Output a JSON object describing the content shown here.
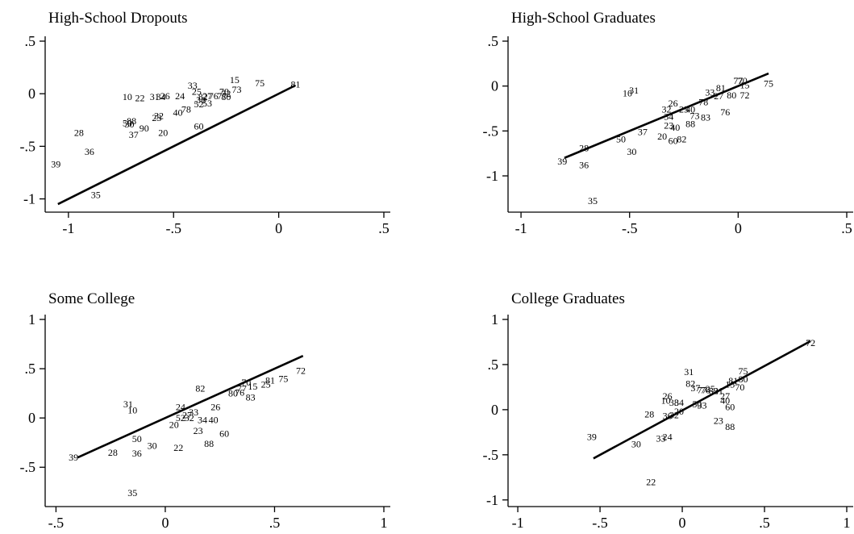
{
  "chart_data": [
    {
      "type": "scatter",
      "title": "High-School Dropouts",
      "xticks": [
        {
          "v": -1,
          "label": "-1"
        },
        {
          "v": -0.5,
          "label": "-.5"
        },
        {
          "v": 0,
          "label": "0"
        },
        {
          "v": 0.5,
          "label": ".5"
        }
      ],
      "yticks": [
        {
          "v": 0.5,
          "label": ".5"
        },
        {
          "v": 0,
          "label": "0"
        },
        {
          "v": -0.5,
          "label": "-.5"
        },
        {
          "v": -1,
          "label": "-1"
        }
      ],
      "xlim": [
        -1.08,
        0.5
      ],
      "ylim": [
        -1.08,
        0.5
      ],
      "fit_line": [
        [
          -1.05,
          -1.05
        ],
        [
          0.08,
          0.08
        ]
      ],
      "points": [
        {
          "label": "15",
          "x": -0.21,
          "y": 0.13
        },
        {
          "label": "75",
          "x": -0.09,
          "y": 0.1
        },
        {
          "label": "81",
          "x": 0.08,
          "y": 0.09
        },
        {
          "label": "33",
          "x": -0.41,
          "y": 0.08
        },
        {
          "label": "73",
          "x": -0.2,
          "y": 0.04
        },
        {
          "label": "25",
          "x": -0.39,
          "y": 0.02
        },
        {
          "label": "70",
          "x": -0.26,
          "y": 0.02
        },
        {
          "label": "72",
          "x": -0.25,
          "y": 0.0
        },
        {
          "label": "10",
          "x": -0.72,
          "y": -0.03
        },
        {
          "label": "22",
          "x": -0.66,
          "y": -0.04
        },
        {
          "label": "31",
          "x": -0.59,
          "y": -0.03
        },
        {
          "label": "34",
          "x": -0.56,
          "y": -0.03
        },
        {
          "label": "26",
          "x": -0.54,
          "y": -0.02
        },
        {
          "label": "24",
          "x": -0.47,
          "y": -0.02
        },
        {
          "label": "82",
          "x": -0.36,
          "y": -0.03
        },
        {
          "label": "27",
          "x": -0.34,
          "y": -0.02
        },
        {
          "label": "76",
          "x": -0.31,
          "y": -0.02
        },
        {
          "label": "77",
          "x": -0.27,
          "y": -0.02
        },
        {
          "label": "80",
          "x": -0.25,
          "y": -0.03
        },
        {
          "label": "38",
          "x": -0.37,
          "y": -0.06
        },
        {
          "label": "52",
          "x": -0.38,
          "y": -0.1
        },
        {
          "label": "53",
          "x": -0.34,
          "y": -0.09
        },
        {
          "label": "78",
          "x": -0.44,
          "y": -0.15
        },
        {
          "label": "40",
          "x": -0.48,
          "y": -0.18
        },
        {
          "label": "32",
          "x": -0.57,
          "y": -0.21
        },
        {
          "label": "23",
          "x": -0.58,
          "y": -0.23
        },
        {
          "label": "88",
          "x": -0.7,
          "y": -0.26
        },
        {
          "label": "50",
          "x": -0.72,
          "y": -0.28
        },
        {
          "label": "30",
          "x": -0.71,
          "y": -0.29
        },
        {
          "label": "90",
          "x": -0.64,
          "y": -0.33
        },
        {
          "label": "37",
          "x": -0.69,
          "y": -0.39
        },
        {
          "label": "20",
          "x": -0.55,
          "y": -0.37
        },
        {
          "label": "60",
          "x": -0.38,
          "y": -0.31
        },
        {
          "label": "28",
          "x": -0.95,
          "y": -0.37
        },
        {
          "label": "36",
          "x": -0.9,
          "y": -0.55
        },
        {
          "label": "39",
          "x": -1.06,
          "y": -0.67
        },
        {
          "label": "35",
          "x": -0.87,
          "y": -0.96
        }
      ]
    },
    {
      "type": "scatter",
      "title": "High-School Graduates",
      "xticks": [
        {
          "v": -1,
          "label": "-1"
        },
        {
          "v": -0.5,
          "label": "-.5"
        },
        {
          "v": 0,
          "label": "0"
        },
        {
          "v": 0.5,
          "label": ".5"
        }
      ],
      "yticks": [
        {
          "v": 0.5,
          "label": ".5"
        },
        {
          "v": 0,
          "label": "0"
        },
        {
          "v": -0.5,
          "label": "-.5"
        },
        {
          "v": -1,
          "label": "-1"
        }
      ],
      "xlim": [
        -1.03,
        0.5
      ],
      "ylim": [
        -1.35,
        0.5
      ],
      "fit_line": [
        [
          -0.8,
          -0.8
        ],
        [
          0.14,
          0.14
        ]
      ],
      "points": [
        {
          "label": "75",
          "x": 0.14,
          "y": 0.03
        },
        {
          "label": "77",
          "x": 0.0,
          "y": 0.06
        },
        {
          "label": "70",
          "x": 0.02,
          "y": 0.06
        },
        {
          "label": "15",
          "x": 0.03,
          "y": 0.01
        },
        {
          "label": "81",
          "x": -0.08,
          "y": -0.02
        },
        {
          "label": "72",
          "x": 0.03,
          "y": -0.1
        },
        {
          "label": "80",
          "x": -0.03,
          "y": -0.1
        },
        {
          "label": "33",
          "x": -0.13,
          "y": -0.07
        },
        {
          "label": "27",
          "x": -0.09,
          "y": -0.11
        },
        {
          "label": "10",
          "x": -0.51,
          "y": -0.08
        },
        {
          "label": "31",
          "x": -0.48,
          "y": -0.05
        },
        {
          "label": "26",
          "x": -0.3,
          "y": -0.19
        },
        {
          "label": "78",
          "x": -0.16,
          "y": -0.18
        },
        {
          "label": "25",
          "x": -0.25,
          "y": -0.26
        },
        {
          "label": "40",
          "x": -0.22,
          "y": -0.26
        },
        {
          "label": "32",
          "x": -0.33,
          "y": -0.26
        },
        {
          "label": "76",
          "x": -0.06,
          "y": -0.29
        },
        {
          "label": "34",
          "x": -0.32,
          "y": -0.34
        },
        {
          "label": "73",
          "x": -0.2,
          "y": -0.33
        },
        {
          "label": "83",
          "x": -0.15,
          "y": -0.35
        },
        {
          "label": "88",
          "x": -0.22,
          "y": -0.42
        },
        {
          "label": "23",
          "x": -0.32,
          "y": -0.44
        },
        {
          "label": "40",
          "x": -0.29,
          "y": -0.46
        },
        {
          "label": "37",
          "x": -0.44,
          "y": -0.51
        },
        {
          "label": "20",
          "x": -0.35,
          "y": -0.56
        },
        {
          "label": "60",
          "x": -0.3,
          "y": -0.61
        },
        {
          "label": "82",
          "x": -0.26,
          "y": -0.59
        },
        {
          "label": "50",
          "x": -0.54,
          "y": -0.59
        },
        {
          "label": "28",
          "x": -0.71,
          "y": -0.69
        },
        {
          "label": "30",
          "x": -0.49,
          "y": -0.73
        },
        {
          "label": "39",
          "x": -0.81,
          "y": -0.84
        },
        {
          "label": "36",
          "x": -0.71,
          "y": -0.88
        },
        {
          "label": "35",
          "x": -0.67,
          "y": -1.28
        }
      ]
    },
    {
      "type": "scatter",
      "title": "Some College",
      "xticks": [
        {
          "v": -0.5,
          "label": "-.5"
        },
        {
          "v": 0,
          "label": "0"
        },
        {
          "v": 0.5,
          "label": ".5"
        },
        {
          "v": 1,
          "label": "1"
        }
      ],
      "yticks": [
        {
          "v": 1,
          "label": "1"
        },
        {
          "v": 0.5,
          "label": ".5"
        },
        {
          "v": 0,
          "label": "0"
        },
        {
          "v": -0.5,
          "label": "-.5"
        }
      ],
      "xlim": [
        -0.52,
        1.0
      ],
      "ylim": [
        -0.85,
        1.0
      ],
      "fit_line": [
        [
          -0.4,
          -0.4
        ],
        [
          0.63,
          0.63
        ]
      ],
      "points": [
        {
          "label": "72",
          "x": 0.62,
          "y": 0.48
        },
        {
          "label": "75",
          "x": 0.54,
          "y": 0.4
        },
        {
          "label": "81",
          "x": 0.48,
          "y": 0.38
        },
        {
          "label": "25",
          "x": 0.46,
          "y": 0.34
        },
        {
          "label": "70",
          "x": 0.37,
          "y": 0.36
        },
        {
          "label": "15",
          "x": 0.4,
          "y": 0.32
        },
        {
          "label": "77",
          "x": 0.35,
          "y": 0.3
        },
        {
          "label": "76",
          "x": 0.34,
          "y": 0.26
        },
        {
          "label": "80",
          "x": 0.31,
          "y": 0.25
        },
        {
          "label": "83",
          "x": 0.39,
          "y": 0.21
        },
        {
          "label": "82",
          "x": 0.16,
          "y": 0.3
        },
        {
          "label": "31",
          "x": -0.17,
          "y": 0.14
        },
        {
          "label": "10",
          "x": -0.15,
          "y": 0.08
        },
        {
          "label": "24",
          "x": 0.07,
          "y": 0.11
        },
        {
          "label": "26",
          "x": 0.23,
          "y": 0.11
        },
        {
          "label": "33",
          "x": 0.13,
          "y": 0.06
        },
        {
          "label": "27",
          "x": 0.1,
          "y": 0.03
        },
        {
          "label": "32",
          "x": 0.11,
          "y": 0.0
        },
        {
          "label": "52",
          "x": 0.07,
          "y": 0.0
        },
        {
          "label": "34",
          "x": 0.17,
          "y": -0.02
        },
        {
          "label": "40",
          "x": 0.22,
          "y": -0.02
        },
        {
          "label": "20",
          "x": 0.04,
          "y": -0.07
        },
        {
          "label": "23",
          "x": 0.15,
          "y": -0.13
        },
        {
          "label": "60",
          "x": 0.27,
          "y": -0.16
        },
        {
          "label": "88",
          "x": 0.2,
          "y": -0.26
        },
        {
          "label": "50",
          "x": -0.13,
          "y": -0.21
        },
        {
          "label": "30",
          "x": -0.06,
          "y": -0.28
        },
        {
          "label": "22",
          "x": 0.06,
          "y": -0.3
        },
        {
          "label": "28",
          "x": -0.24,
          "y": -0.35
        },
        {
          "label": "36",
          "x": -0.13,
          "y": -0.36
        },
        {
          "label": "39",
          "x": -0.42,
          "y": -0.4
        },
        {
          "label": "35",
          "x": -0.15,
          "y": -0.76
        }
      ]
    },
    {
      "type": "scatter",
      "title": "College Graduates",
      "xticks": [
        {
          "v": -1,
          "label": "-1"
        },
        {
          "v": -0.5,
          "label": "-.5"
        },
        {
          "v": 0,
          "label": "0"
        },
        {
          "v": 0.5,
          "label": ".5"
        },
        {
          "v": 1,
          "label": "1"
        }
      ],
      "yticks": [
        {
          "v": 1,
          "label": "1"
        },
        {
          "v": 0.5,
          "label": ".5"
        },
        {
          "v": 0,
          "label": "0"
        },
        {
          "v": -0.5,
          "label": "-.5"
        },
        {
          "v": -1,
          "label": "-1"
        }
      ],
      "xlim": [
        -1.02,
        1.0
      ],
      "ylim": [
        -1.02,
        1.0
      ],
      "fit_line": [
        [
          -0.54,
          -0.54
        ],
        [
          0.78,
          0.76
        ]
      ],
      "points": [
        {
          "label": "72",
          "x": 0.78,
          "y": 0.74
        },
        {
          "label": "75",
          "x": 0.37,
          "y": 0.43
        },
        {
          "label": "80",
          "x": 0.37,
          "y": 0.34
        },
        {
          "label": "81",
          "x": 0.31,
          "y": 0.32
        },
        {
          "label": "31",
          "x": 0.04,
          "y": 0.42
        },
        {
          "label": "82",
          "x": 0.05,
          "y": 0.29
        },
        {
          "label": "70",
          "x": 0.35,
          "y": 0.25
        },
        {
          "label": "15",
          "x": 0.29,
          "y": 0.28
        },
        {
          "label": "37",
          "x": 0.08,
          "y": 0.24
        },
        {
          "label": "77",
          "x": 0.12,
          "y": 0.22
        },
        {
          "label": "76",
          "x": 0.14,
          "y": 0.22
        },
        {
          "label": "25",
          "x": 0.17,
          "y": 0.23
        },
        {
          "label": "83",
          "x": 0.19,
          "y": 0.21
        },
        {
          "label": "21",
          "x": 0.22,
          "y": 0.21
        },
        {
          "label": "27",
          "x": 0.26,
          "y": 0.15
        },
        {
          "label": "26",
          "x": -0.09,
          "y": 0.15
        },
        {
          "label": "10",
          "x": -0.1,
          "y": 0.1
        },
        {
          "label": "38",
          "x": -0.05,
          "y": 0.08
        },
        {
          "label": "34",
          "x": -0.02,
          "y": 0.08
        },
        {
          "label": "50",
          "x": 0.09,
          "y": 0.06
        },
        {
          "label": "33",
          "x": 0.12,
          "y": 0.05
        },
        {
          "label": "40",
          "x": 0.26,
          "y": 0.1
        },
        {
          "label": "60",
          "x": 0.29,
          "y": 0.03
        },
        {
          "label": "20",
          "x": -0.02,
          "y": -0.02
        },
        {
          "label": "32",
          "x": -0.05,
          "y": -0.06
        },
        {
          "label": "36",
          "x": -0.09,
          "y": -0.07
        },
        {
          "label": "28",
          "x": -0.2,
          "y": -0.05
        },
        {
          "label": "23",
          "x": 0.22,
          "y": -0.12
        },
        {
          "label": "88",
          "x": 0.29,
          "y": -0.19
        },
        {
          "label": "24",
          "x": -0.09,
          "y": -0.3
        },
        {
          "label": "33",
          "x": -0.13,
          "y": -0.32
        },
        {
          "label": "39",
          "x": -0.55,
          "y": -0.3
        },
        {
          "label": "30",
          "x": -0.28,
          "y": -0.38
        },
        {
          "label": "22",
          "x": -0.19,
          "y": -0.8
        }
      ]
    }
  ]
}
